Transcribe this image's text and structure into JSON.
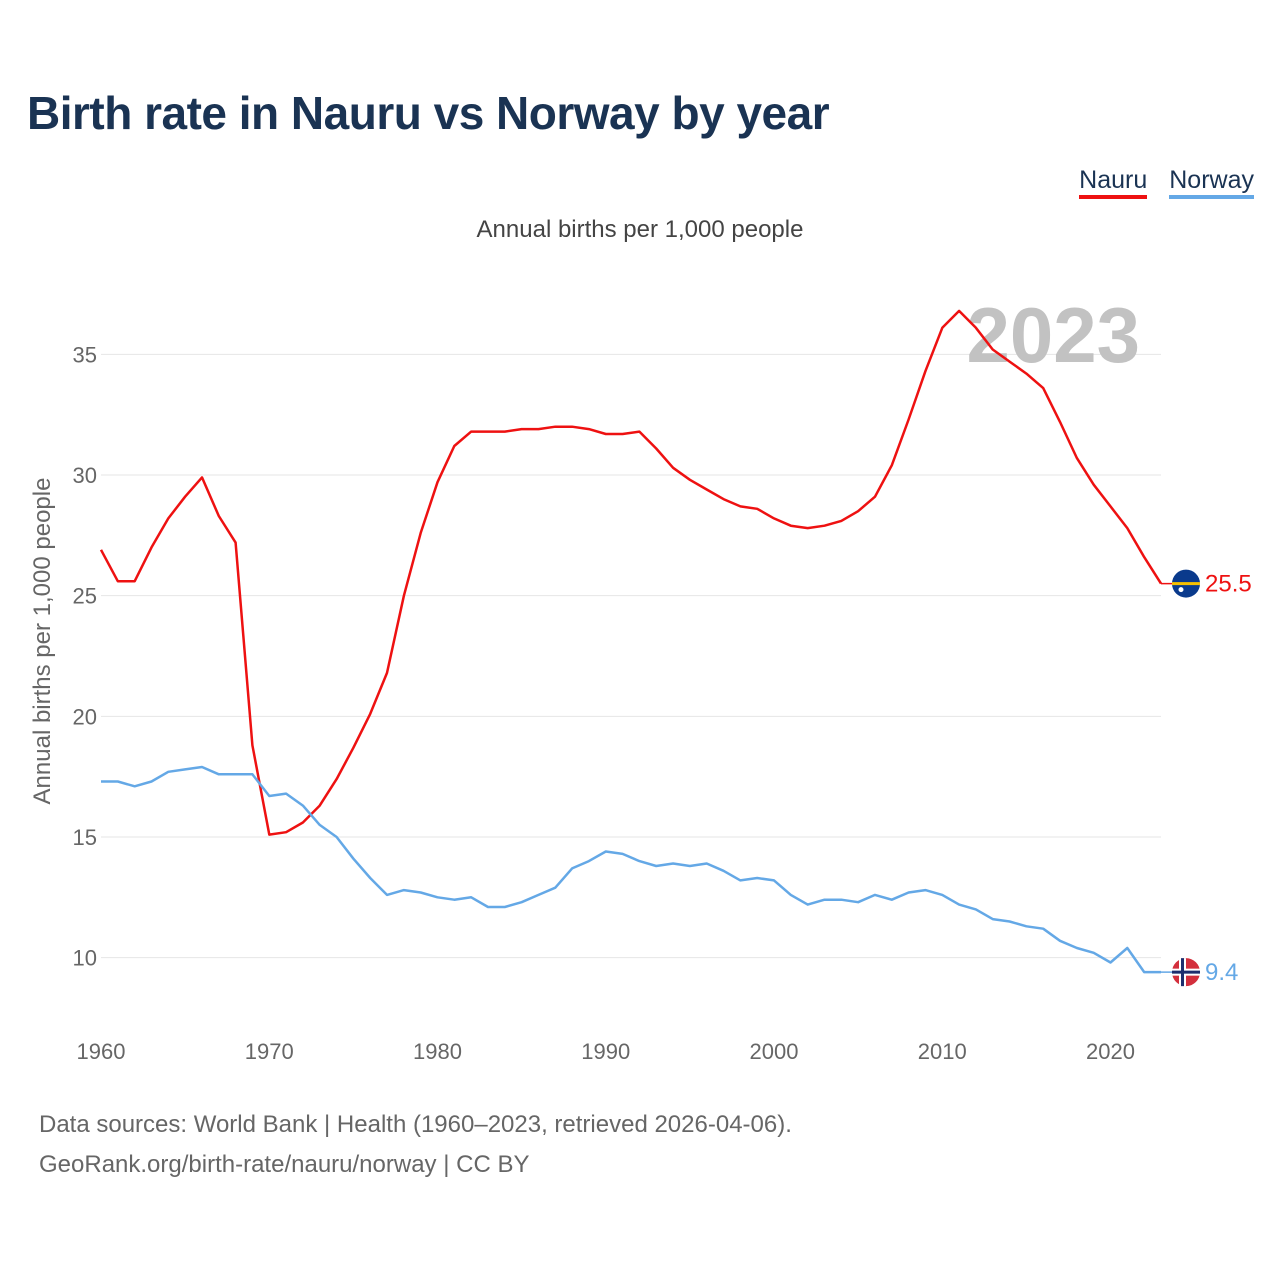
{
  "title": "Birth rate in Nauru vs Norway by year",
  "subtitle": "Annual births per 1,000 people",
  "legend": [
    {
      "label": "Nauru",
      "color": "#ee1111"
    },
    {
      "label": "Norway",
      "color": "#64a8e6"
    }
  ],
  "year_label": "2023",
  "footer": {
    "line1": "Data sources: World Bank | Health (1960–2023, retrieved 2026-04-06).",
    "line2": "GeoRank.org/birth-rate/nauru/norway | CC BY"
  },
  "chart_data": {
    "type": "line",
    "title": "Birth rate in Nauru vs Norway by year",
    "ylabel": "Annual births per 1,000 people",
    "xlabel": "",
    "xlim": [
      1960,
      2023
    ],
    "ylim": [
      7.5,
      37.5
    ],
    "x_ticks": [
      1960,
      1970,
      1980,
      1990,
      2000,
      2010,
      2020
    ],
    "y_ticks": [
      10,
      15,
      20,
      25,
      30,
      35
    ],
    "grid": "horizontal",
    "x": [
      1960,
      1961,
      1962,
      1963,
      1964,
      1965,
      1966,
      1967,
      1968,
      1969,
      1970,
      1971,
      1972,
      1973,
      1974,
      1975,
      1976,
      1977,
      1978,
      1979,
      1980,
      1981,
      1982,
      1983,
      1984,
      1985,
      1986,
      1987,
      1988,
      1989,
      1990,
      1991,
      1992,
      1993,
      1994,
      1995,
      1996,
      1997,
      1998,
      1999,
      2000,
      2001,
      2002,
      2003,
      2004,
      2005,
      2006,
      2007,
      2008,
      2009,
      2010,
      2011,
      2012,
      2013,
      2014,
      2015,
      2016,
      2017,
      2018,
      2019,
      2020,
      2021,
      2022,
      2023
    ],
    "series": [
      {
        "name": "Nauru",
        "color": "#ee1111",
        "end_label": "25.5",
        "values": [
          26.9,
          25.6,
          25.6,
          27.0,
          28.2,
          29.1,
          29.9,
          28.3,
          27.2,
          18.8,
          15.1,
          15.2,
          15.6,
          16.3,
          17.4,
          18.7,
          20.1,
          21.8,
          25.0,
          27.6,
          29.7,
          31.2,
          31.8,
          31.8,
          31.8,
          31.9,
          31.9,
          32.0,
          32.0,
          31.9,
          31.7,
          31.7,
          31.8,
          31.1,
          30.3,
          29.8,
          29.4,
          29.0,
          28.7,
          28.6,
          28.2,
          27.9,
          27.8,
          27.9,
          28.1,
          28.5,
          29.1,
          30.4,
          32.3,
          34.3,
          36.1,
          36.8,
          36.1,
          35.2,
          34.7,
          34.2,
          33.6,
          32.2,
          30.7,
          29.6,
          28.7,
          27.8,
          26.6,
          25.5
        ]
      },
      {
        "name": "Norway",
        "color": "#64a8e6",
        "end_label": "9.4",
        "values": [
          17.3,
          17.3,
          17.1,
          17.3,
          17.7,
          17.8,
          17.9,
          17.6,
          17.6,
          17.6,
          16.7,
          16.8,
          16.3,
          15.5,
          15.0,
          14.1,
          13.3,
          12.6,
          12.8,
          12.7,
          12.5,
          12.4,
          12.5,
          12.1,
          12.1,
          12.3,
          12.6,
          12.9,
          13.7,
          14.0,
          14.4,
          14.3,
          14.0,
          13.8,
          13.9,
          13.8,
          13.9,
          13.6,
          13.2,
          13.3,
          13.2,
          12.6,
          12.2,
          12.4,
          12.4,
          12.3,
          12.6,
          12.4,
          12.7,
          12.8,
          12.6,
          12.2,
          12.0,
          11.6,
          11.5,
          11.3,
          11.2,
          10.7,
          10.4,
          10.2,
          9.8,
          10.4,
          9.4,
          9.4
        ]
      }
    ]
  }
}
